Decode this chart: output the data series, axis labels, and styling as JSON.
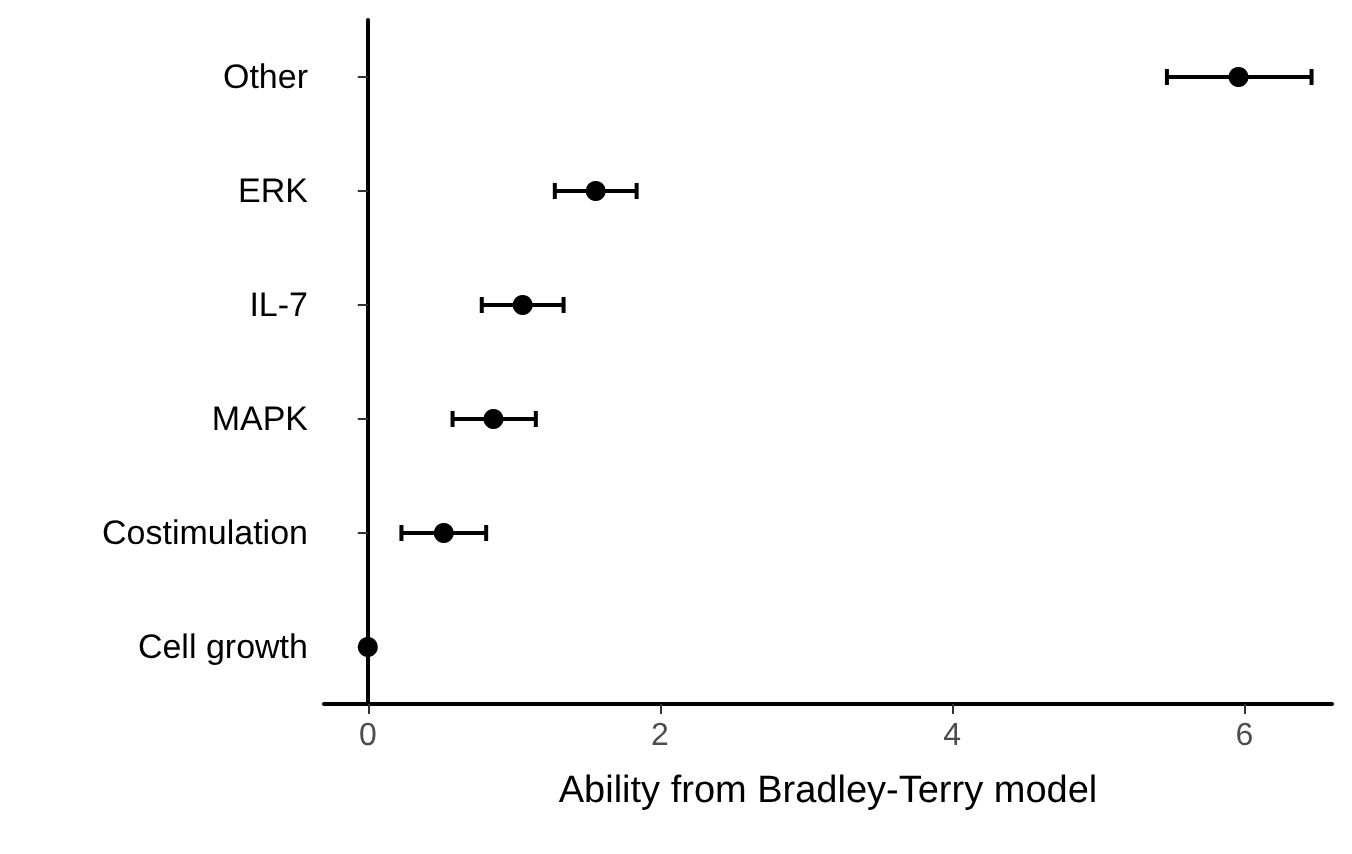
{
  "chart_data": {
    "type": "scatter",
    "orientation": "horizontal",
    "xlabel": "Ability from Bradley-Terry model",
    "categories": [
      "Other",
      "ERK",
      "IL-7",
      "MAPK",
      "Costimulation",
      "Cell growth"
    ],
    "values": [
      5.96,
      1.56,
      1.06,
      0.86,
      0.52,
      0
    ],
    "errors": [
      [
        5.47,
        6.46
      ],
      [
        1.28,
        1.84
      ],
      [
        0.78,
        1.34
      ],
      [
        0.58,
        1.15
      ],
      [
        0.23,
        0.81
      ],
      null
    ],
    "color": "#000000",
    "marker": "circle",
    "xlim": [
      -0.3,
      6.6
    ],
    "xticks": [
      0,
      2,
      4,
      6
    ],
    "grid": false
  }
}
